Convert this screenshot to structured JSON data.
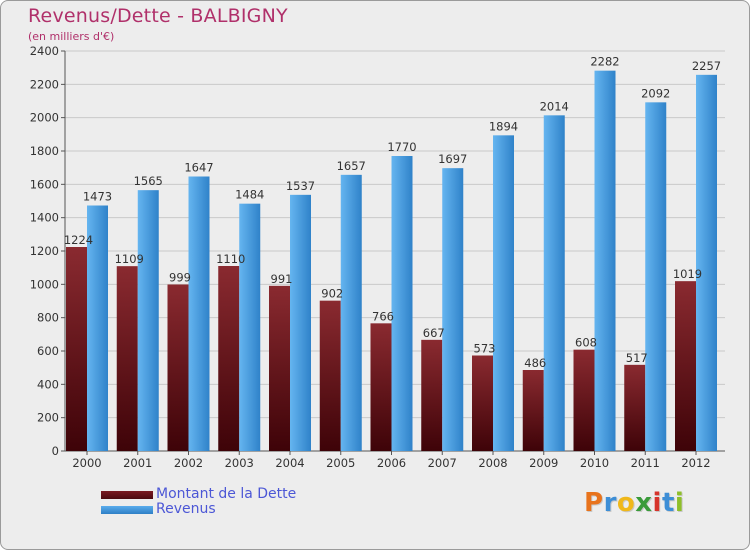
{
  "header": {
    "title": "Revenus/Dette - BALBIGNY",
    "subtitle": "(en milliers d'€)"
  },
  "chart_data": {
    "type": "bar",
    "title": "Revenus/Dette - BALBIGNY",
    "ylabel": "(en milliers d'€)",
    "xlabel": "",
    "ylim": [
      0,
      2400
    ],
    "yticks": [
      0,
      200,
      400,
      600,
      800,
      1000,
      1200,
      1400,
      1600,
      1800,
      2000,
      2200,
      2400
    ],
    "grid": true,
    "categories": [
      "2000",
      "2001",
      "2002",
      "2003",
      "2004",
      "2005",
      "2006",
      "2007",
      "2008",
      "2009",
      "2010",
      "2011",
      "2012"
    ],
    "series": [
      {
        "name": "Montant de la Dette",
        "color": "#7a1a22",
        "values": [
          1224,
          1109,
          999,
          1110,
          991,
          902,
          766,
          667,
          573,
          486,
          608,
          517,
          1019
        ],
        "labels": [
          "1224",
          "1109",
          "999",
          "1110",
          "991",
          "902",
          "766",
          "667",
          "573",
          "486",
          "608",
          "517",
          "1019"
        ]
      },
      {
        "name": "Revenus",
        "color": "#4ea3e6",
        "values": [
          1473,
          1565,
          1647,
          1484,
          1537,
          1657,
          1770,
          1697,
          1894,
          2014,
          2282,
          2092,
          2257
        ],
        "labels": [
          "1473",
          "1565",
          "1647",
          "1484",
          "1537",
          "1657",
          "1770",
          "1697",
          "1894",
          "2014",
          "2282",
          "2092",
          "2257"
        ]
      }
    ]
  },
  "legend": {
    "items": [
      {
        "label": "Montant de la Dette"
      },
      {
        "label": "Revenus"
      }
    ]
  },
  "logo": {
    "letters": [
      "P",
      "r",
      "o",
      "x",
      "i",
      "t",
      "i"
    ],
    "colors": [
      "#e8731c",
      "#3d8ed6",
      "#f0b81a",
      "#3a9b3a",
      "#d6342c",
      "#3d8ed6",
      "#8fbf2a"
    ]
  }
}
